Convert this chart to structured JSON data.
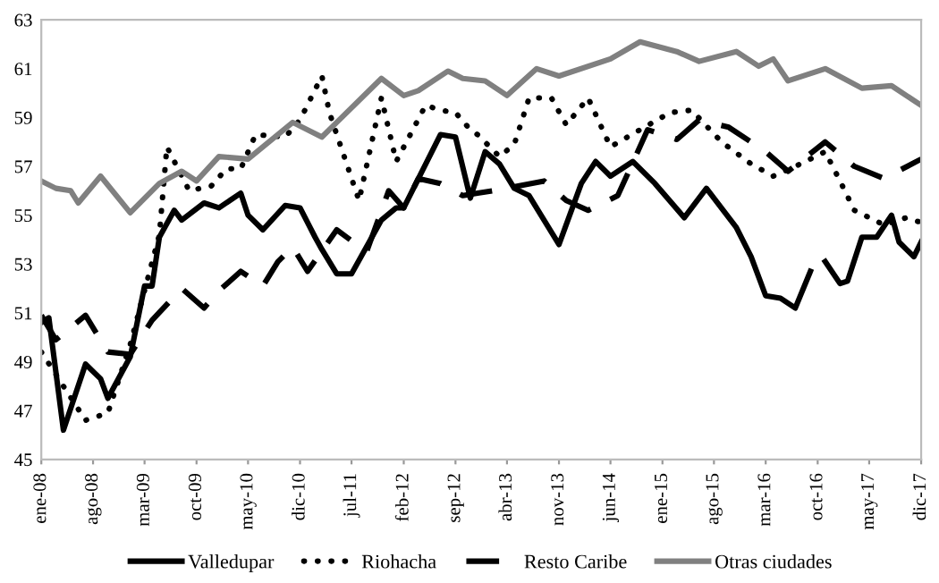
{
  "chart_data": {
    "type": "line",
    "ylim": [
      45,
      63
    ],
    "yticks": [
      45,
      47,
      49,
      51,
      53,
      55,
      57,
      59,
      61,
      63
    ],
    "xlim": [
      "2008-01",
      "2017-12"
    ],
    "xticks": [
      {
        "value": "2008-01",
        "label": "ene-08"
      },
      {
        "value": "2008-08",
        "label": "ago-08"
      },
      {
        "value": "2009-03",
        "label": "mar-09"
      },
      {
        "value": "2009-10",
        "label": "oct-09"
      },
      {
        "value": "2010-05",
        "label": "may-10"
      },
      {
        "value": "2010-12",
        "label": "dic-10"
      },
      {
        "value": "2011-07",
        "label": "jul-11"
      },
      {
        "value": "2012-02",
        "label": "feb-12"
      },
      {
        "value": "2012-09",
        "label": "sep-12"
      },
      {
        "value": "2013-04",
        "label": "abr-13"
      },
      {
        "value": "2013-11",
        "label": "nov-13"
      },
      {
        "value": "2014-06",
        "label": "jun-14"
      },
      {
        "value": "2015-01",
        "label": "ene-15"
      },
      {
        "value": "2015-08",
        "label": "ago-15"
      },
      {
        "value": "2016-03",
        "label": "mar-16"
      },
      {
        "value": "2016-10",
        "label": "oct-16"
      },
      {
        "value": "2017-05",
        "label": "may-17"
      },
      {
        "value": "2017-12",
        "label": "dic-17"
      }
    ],
    "grid": false,
    "legend": "bottom",
    "series": [
      {
        "name": "Valledupar",
        "color": "#000000",
        "line_style": "solid",
        "x": [
          "2008-01",
          "2008-02",
          "2008-04",
          "2008-07",
          "2008-09",
          "2008-10",
          "2009-01",
          "2009-03",
          "2009-04",
          "2009-05",
          "2009-07",
          "2009-08",
          "2009-11",
          "2010-01",
          "2010-04",
          "2010-05",
          "2010-07",
          "2010-10",
          "2010-12",
          "2011-02",
          "2011-03",
          "2011-05",
          "2011-07",
          "2011-11",
          "2012-01",
          "2012-02",
          "2012-07",
          "2012-09",
          "2012-11",
          "2013-01",
          "2013-03",
          "2013-05",
          "2013-07",
          "2013-11",
          "2014-02",
          "2014-04",
          "2014-06",
          "2014-09",
          "2014-12",
          "2015-04",
          "2015-07",
          "2015-11",
          "2016-01",
          "2016-03",
          "2016-05",
          "2016-07",
          "2016-09",
          "2016-10",
          "2016-11",
          "2017-01",
          "2017-02",
          "2017-04",
          "2017-06",
          "2017-08",
          "2017-09",
          "2017-11",
          "2017-12"
        ],
        "values": [
          50.6,
          50.8,
          46.2,
          48.9,
          48.3,
          47.5,
          49.2,
          52.1,
          52.1,
          54.1,
          55.2,
          54.8,
          55.5,
          55.3,
          55.9,
          55.0,
          54.4,
          55.4,
          55.3,
          54.1,
          53.6,
          52.6,
          52.6,
          54.8,
          55.3,
          55.3,
          58.3,
          58.2,
          55.7,
          57.6,
          57.1,
          56.1,
          55.8,
          53.8,
          56.3,
          57.2,
          56.6,
          57.2,
          56.3,
          54.9,
          56.1,
          54.5,
          53.3,
          51.7,
          51.6,
          51.2,
          52.7,
          null,
          53.1,
          52.2,
          52.3,
          54.1,
          54.1,
          55.0,
          53.9,
          53.3,
          53.9
        ]
      },
      {
        "name": "Riohacha",
        "color": "#000000",
        "line_style": "dotted",
        "x": [
          "2008-01",
          "2008-07",
          "2008-10",
          "2009-01",
          "2009-05",
          "2009-06",
          "2009-09",
          "2009-12",
          "2010-02",
          "2010-04",
          "2010-06",
          "2010-10",
          "2010-12",
          "2011-03",
          "2011-04",
          "2011-08",
          "2011-11",
          "2012-01",
          "2012-05",
          "2012-07",
          "2012-09",
          "2012-11",
          "2012-12",
          "2013-03",
          "2013-05",
          "2013-07",
          "2013-10",
          "2013-12",
          "2014-03",
          "2014-06",
          "2014-10",
          "2015-02",
          "2015-05",
          "2015-09",
          "2016-01",
          "2016-04",
          "2016-07",
          "2016-11",
          "2017-01",
          "2017-03",
          "2017-07",
          "2017-10",
          "2017-12"
        ],
        "values": [
          49.4,
          46.6,
          46.9,
          49.7,
          54.2,
          57.8,
          56.0,
          56.2,
          56.9,
          56.9,
          58.3,
          58.2,
          58.9,
          60.7,
          59.2,
          55.6,
          59.8,
          57.2,
          59.5,
          59.3,
          59.2,
          58.5,
          58.3,
          57.4,
          57.9,
          59.8,
          59.8,
          58.7,
          59.8,
          57.8,
          58.5,
          59.2,
          59.3,
          58.0,
          57.1,
          56.6,
          57.0,
          57.6,
          56.4,
          55.2,
          54.6,
          54.9,
          54.7
        ]
      },
      {
        "name": "Resto Caribe",
        "color": "#000000",
        "line_style": "dashed",
        "x": [
          "2008-01",
          "2008-03",
          "2008-07",
          "2008-10",
          "2009-01",
          "2009-04",
          "2009-08",
          "2009-11",
          "2010-01",
          "2010-04",
          "2010-07",
          "2010-09",
          "2010-11",
          "2011-01",
          "2011-05",
          "2011-09",
          "2011-12",
          "2012-02",
          "2012-04",
          "2012-07",
          "2012-10",
          "2012-12",
          "2013-02",
          "2013-09",
          "2013-12",
          "2014-03",
          "2014-07",
          "2014-11",
          "2015-03",
          "2015-06",
          "2015-10",
          "2016-03",
          "2016-06",
          "2016-11",
          "2017-03",
          "2017-07",
          "2017-12"
        ],
        "values": [
          50.9,
          49.9,
          50.9,
          49.4,
          49.3,
          50.7,
          52.0,
          51.2,
          51.9,
          52.7,
          52.1,
          53.1,
          53.7,
          52.7,
          54.4,
          53.5,
          56.0,
          55.3,
          56.5,
          56.3,
          55.8,
          55.9,
          56.0,
          56.4,
          55.6,
          55.2,
          55.8,
          58.5,
          58.1,
          58.9,
          58.6,
          57.6,
          56.8,
          58.0,
          57.0,
          56.5,
          57.3
        ]
      },
      {
        "name": "Otras ciudades",
        "color": "#808080",
        "line_style": "solid",
        "x": [
          "2008-01",
          "2008-03",
          "2008-05",
          "2008-06",
          "2008-09",
          "2009-01",
          "2009-05",
          "2009-08",
          "2009-10",
          "2010-01",
          "2010-05",
          "2010-11",
          "2011-03",
          "2011-05",
          "2011-11",
          "2012-02",
          "2012-04",
          "2012-08",
          "2012-10",
          "2013-01",
          "2013-04",
          "2013-08",
          "2013-11",
          "2014-06",
          "2014-10",
          "2015-03",
          "2015-06",
          "2015-11",
          "2016-02",
          "2016-04",
          "2016-06",
          "2016-11",
          "2017-04",
          "2017-08",
          "2017-12"
        ],
        "values": [
          56.4,
          56.1,
          56.0,
          55.5,
          56.6,
          55.1,
          56.3,
          56.8,
          56.4,
          57.4,
          57.3,
          58.8,
          58.2,
          58.8,
          60.6,
          59.9,
          60.1,
          60.9,
          60.6,
          60.5,
          59.9,
          61.0,
          60.7,
          61.4,
          62.1,
          61.7,
          61.3,
          61.7,
          61.1,
          61.4,
          60.5,
          61.0,
          60.2,
          60.3,
          59.5
        ]
      }
    ]
  }
}
